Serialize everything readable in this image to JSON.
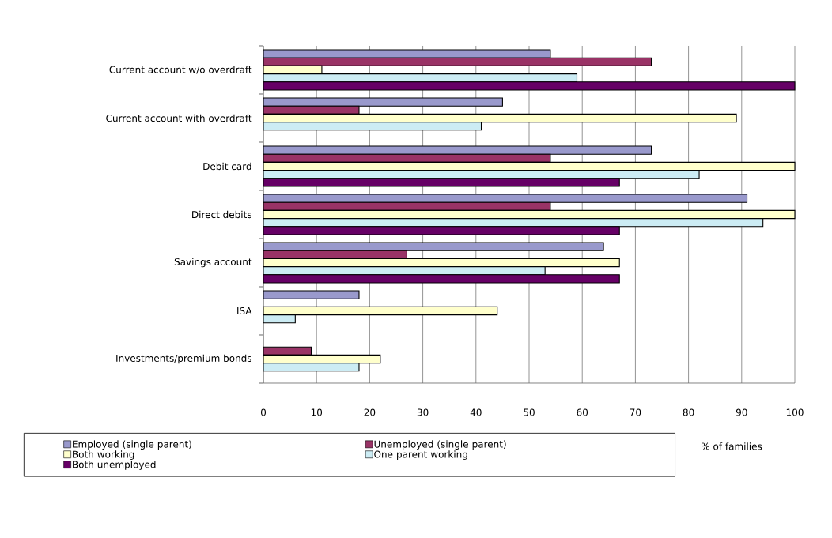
{
  "chart_data": {
    "type": "bar",
    "orientation": "horizontal",
    "categories": [
      "Current account w/o overdraft",
      "Current account with overdraft",
      "Debit card",
      "Direct debits",
      "Savings account",
      "ISA",
      "Investments/premium bonds"
    ],
    "series": [
      {
        "name": "Employed (single parent)",
        "color": "#9999cc",
        "values": [
          54,
          45,
          73,
          91,
          64,
          18,
          null
        ]
      },
      {
        "name": "Unemployed (single parent)",
        "color": "#993366",
        "values": [
          73,
          18,
          54,
          54,
          27,
          null,
          9
        ]
      },
      {
        "name": "Both working",
        "color": "#ffffcc",
        "values": [
          11,
          89,
          100,
          100,
          67,
          44,
          22
        ]
      },
      {
        "name": "One parent working",
        "color": "#ccecf4",
        "values": [
          59,
          41,
          82,
          94,
          53,
          6,
          18
        ]
      },
      {
        "name": "Both unemployed",
        "color": "#660066",
        "values": [
          100,
          null,
          67,
          67,
          67,
          null,
          null
        ]
      }
    ],
    "xlabel": "% of families",
    "xlim": [
      0,
      100
    ],
    "xticks": [
      0,
      10,
      20,
      30,
      40,
      50,
      60,
      70,
      80,
      90,
      100
    ],
    "grid": "x",
    "legend": "bottom"
  }
}
